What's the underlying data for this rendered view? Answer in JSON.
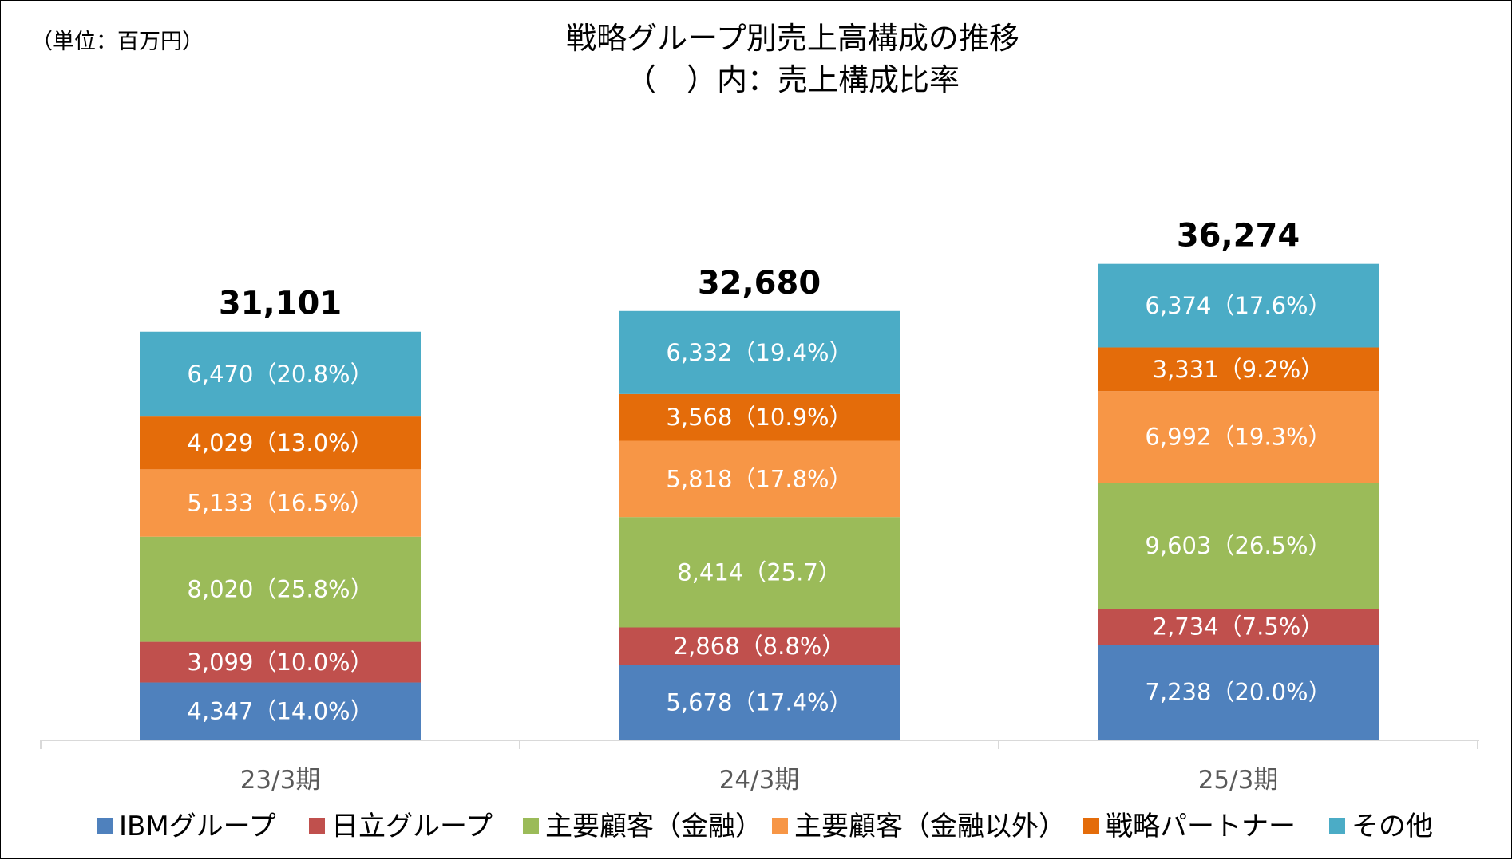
{
  "unit_label": "（単位：百万円）",
  "title": "戦略グループ別売上高構成の推移",
  "subtitle": "（　）内：売上構成比率",
  "chart_data": {
    "type": "bar",
    "stacked": true,
    "title": "戦略グループ別売上高構成の推移",
    "subtitle": "（　）内：売上構成比率",
    "unit": "（単位：百万円）",
    "categories": [
      "23/3期",
      "24/3期",
      "25/3期"
    ],
    "totals": [
      31101,
      32680,
      36274
    ],
    "total_labels": [
      "31,101",
      "32,680",
      "36,274"
    ],
    "series": [
      {
        "name": "IBMグループ",
        "color": "#4F81BD",
        "values": [
          4347,
          5678,
          7238
        ],
        "labels": [
          "4,347（14.0%）",
          "5,678（17.4%）",
          "7,238（20.0%）"
        ]
      },
      {
        "name": "日立グループ",
        "color": "#C0504D",
        "values": [
          3099,
          2868,
          2734
        ],
        "labels": [
          "3,099（10.0%）",
          "2,868（8.8%）",
          "2,734（7.5%）"
        ]
      },
      {
        "name": "主要顧客（金融）",
        "color": "#9BBB59",
        "values": [
          8020,
          8414,
          9603
        ],
        "labels": [
          "8,020（25.8%）",
          "8,414（25.7）",
          "9,603（26.5%）"
        ]
      },
      {
        "name": "主要顧客（金融以外）",
        "color": "#F79646",
        "values": [
          5133,
          5818,
          6992
        ],
        "labels": [
          "5,133（16.5%）",
          "5,818（17.8%）",
          "6,992（19.3%）"
        ]
      },
      {
        "name": "戦略パートナー",
        "color": "#E46C0A",
        "values": [
          4029,
          3568,
          3331
        ],
        "labels": [
          "4,029（13.0%）",
          "3,568（10.9%）",
          "3,331（9.2%）"
        ]
      },
      {
        "name": "その他",
        "color": "#4BACC6",
        "values": [
          6470,
          6332,
          6374
        ],
        "labels": [
          "6,470（20.8%）",
          "6,332（19.4%）",
          "6,374（17.6%）"
        ]
      }
    ],
    "legend_position": "bottom",
    "grid": false
  }
}
